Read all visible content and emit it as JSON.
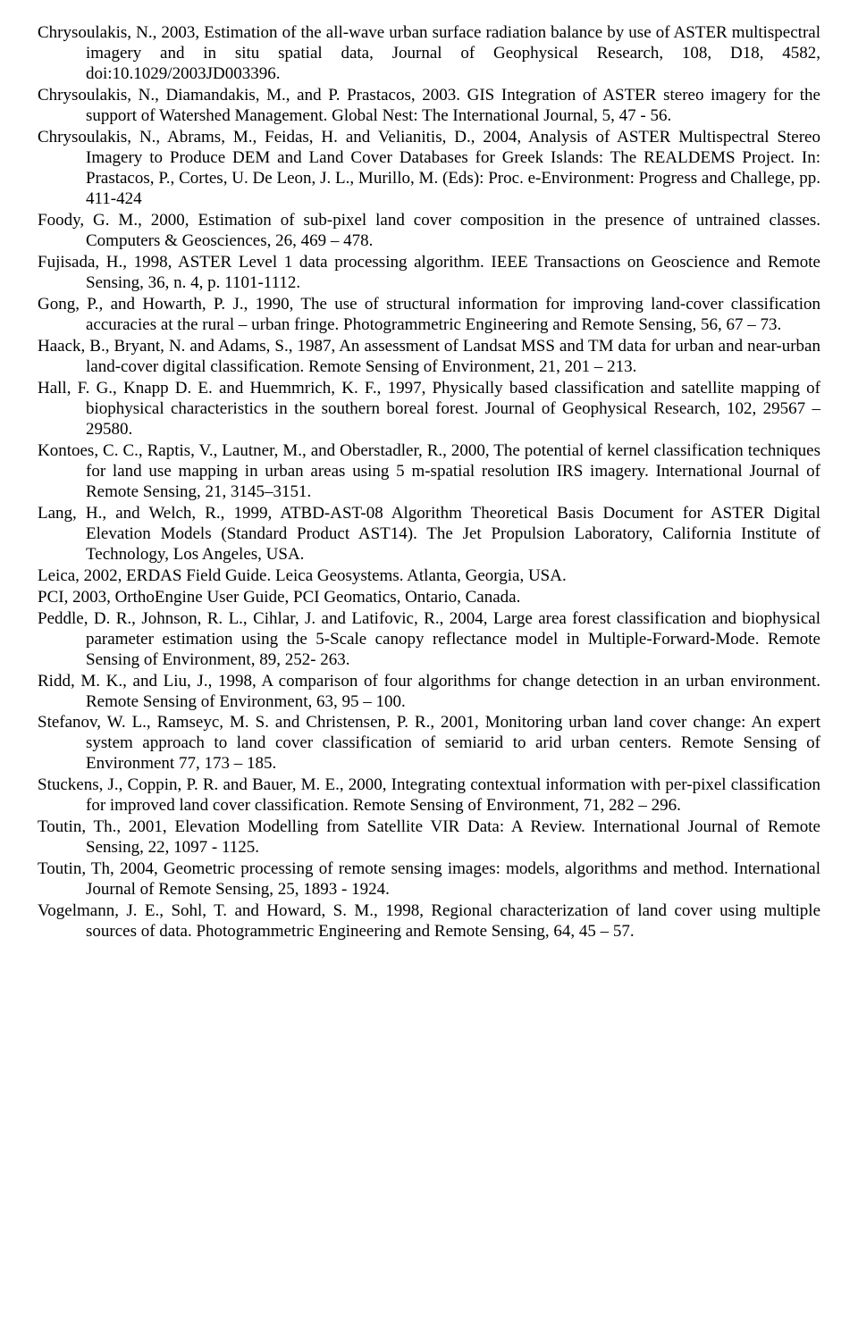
{
  "references": [
    "Chrysoulakis, N., 2003, Estimation of the all-wave urban surface radiation balance by use of ASTER multispectral imagery and in situ spatial data, Journal of Geophysical Research, 108, D18, 4582, doi:10.1029/2003JD003396.",
    "Chrysoulakis, N., Diamandakis, M., and P. Prastacos, 2003. GIS Integration of ASTER stereo imagery for the support of Watershed Management. Global Nest: The International Journal, 5, 47 - 56.",
    "Chrysoulakis, N., Abrams, M., Feidas, H. and Velianitis, D., 2004, Analysis of ASTER Multispectral Stereo Imagery to Produce DEM and Land Cover Databases for Greek Islands: The REALDEMS Project. In: Prastacos, P., Cortes, U. De Leon, J. L., Murillo, M. (Eds): Proc. e-Environment: Progress and Challege, pp. 411-424",
    "Foody, G. M., 2000, Estimation of sub-pixel land cover composition in the presence of untrained classes. Computers & Geosciences, 26, 469 – 478.",
    "Fujisada, H., 1998, ASTER Level 1 data processing algorithm. IEEE Transactions on Geoscience and Remote Sensing, 36, n. 4, p. 1101-1112.",
    "Gong, P., and Howarth, P. J., 1990, The use of structural information for improving land-cover classification accuracies at the rural – urban fringe. Photogrammetric Engineering and Remote Sensing, 56, 67 – 73.",
    "Haack, B., Bryant, N. and  Adams, S., 1987, An assessment of Landsat MSS and TM data for urban and near-urban land-cover digital classification. Remote Sensing of Environment, 21, 201 – 213.",
    "Hall, F. G., Knapp D. E. and Huemmrich, K. F., 1997, Physically based classification and satellite mapping of biophysical characteristics in the southern boreal forest. Journal of Geophysical Research, 102, 29567 – 29580.",
    "Kontoes, C. C., Raptis, V., Lautner, M., and Oberstadler, R., 2000, The potential of kernel classification techniques for land use mapping in urban areas using 5 m-spatial resolution IRS imagery. International Journal of Remote Sensing, 21, 3145–3151.",
    "Lang, H., and Welch, R., 1999, ATBD-AST-08 Algorithm Theoretical Basis Document for ASTER Digital Elevation Models (Standard Product AST14). The Jet Propulsion Laboratory, California Institute of Technology, Los Angeles, USA.",
    "Leica, 2002, ERDAS Field Guide. Leica Geosystems. Atlanta, Georgia, USA.",
    "PCI, 2003, OrthoEngine User Guide, PCI Geomatics, Ontario, Canada.",
    "Peddle, D. R., Johnson, R. L., Cihlar, J. and Latifovic, R., 2004, Large area forest classification and biophysical parameter estimation using the 5-Scale canopy reflectance model in Multiple-Forward-Mode. Remote Sensing of Environment, 89, 252- 263.",
    "Ridd, M. K., and Liu, J., 1998, A comparison of four algorithms for change detection in an urban environment. Remote Sensing of Environment, 63, 95 – 100.",
    "Stefanov, W. L., Ramseyc, M. S. and Christensen, P. R., 2001, Monitoring urban land cover change: An expert system approach to land cover classification of semiarid to arid urban centers. Remote Sensing of Environment 77, 173 – 185.",
    "Stuckens, J., Coppin, P. R. and Bauer, M. E., 2000, Integrating contextual information with per-pixel classification for improved land cover classification. Remote Sensing of Environment, 71, 282 – 296.",
    "Toutin, Th., 2001, Elevation Modelling from Satellite VIR Data: A Review. International Journal of Remote Sensing, 22, 1097 - 1125.",
    "Toutin, Th, 2004, Geometric processing of remote sensing images: models, algorithms and method. International Journal of Remote Sensing, 25, 1893 - 1924.",
    "Vogelmann, J. E., Sohl, T. and Howard, S. M., 1998, Regional characterization of land cover using multiple sources of data. Photogrammetric Engineering and Remote Sensing, 64, 45 – 57."
  ]
}
